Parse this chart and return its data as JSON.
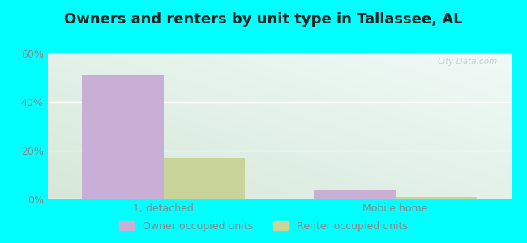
{
  "title": "Owners and renters by unit type in Tallassee, AL",
  "categories": [
    "1, detached",
    "Mobile home"
  ],
  "owner_values": [
    51,
    4
  ],
  "renter_values": [
    17,
    1
  ],
  "owner_color": "#c9aed6",
  "renter_color": "#c8d49a",
  "bar_width": 0.35,
  "ylim": [
    0,
    60
  ],
  "yticks": [
    0,
    20,
    40,
    60
  ],
  "ytick_labels": [
    "0%",
    "20%",
    "40%",
    "60%"
  ],
  "outer_bg": "#00ffff",
  "plot_bg_left": "#d6ead8",
  "plot_bg_right": "#f0faf8",
  "legend_owner": "Owner occupied units",
  "legend_renter": "Renter occupied units",
  "title_fontsize": 13,
  "watermark": "City-Data.com",
  "label_color": "#888888",
  "title_color": "#222222",
  "grid_color": "#e0e8e0"
}
